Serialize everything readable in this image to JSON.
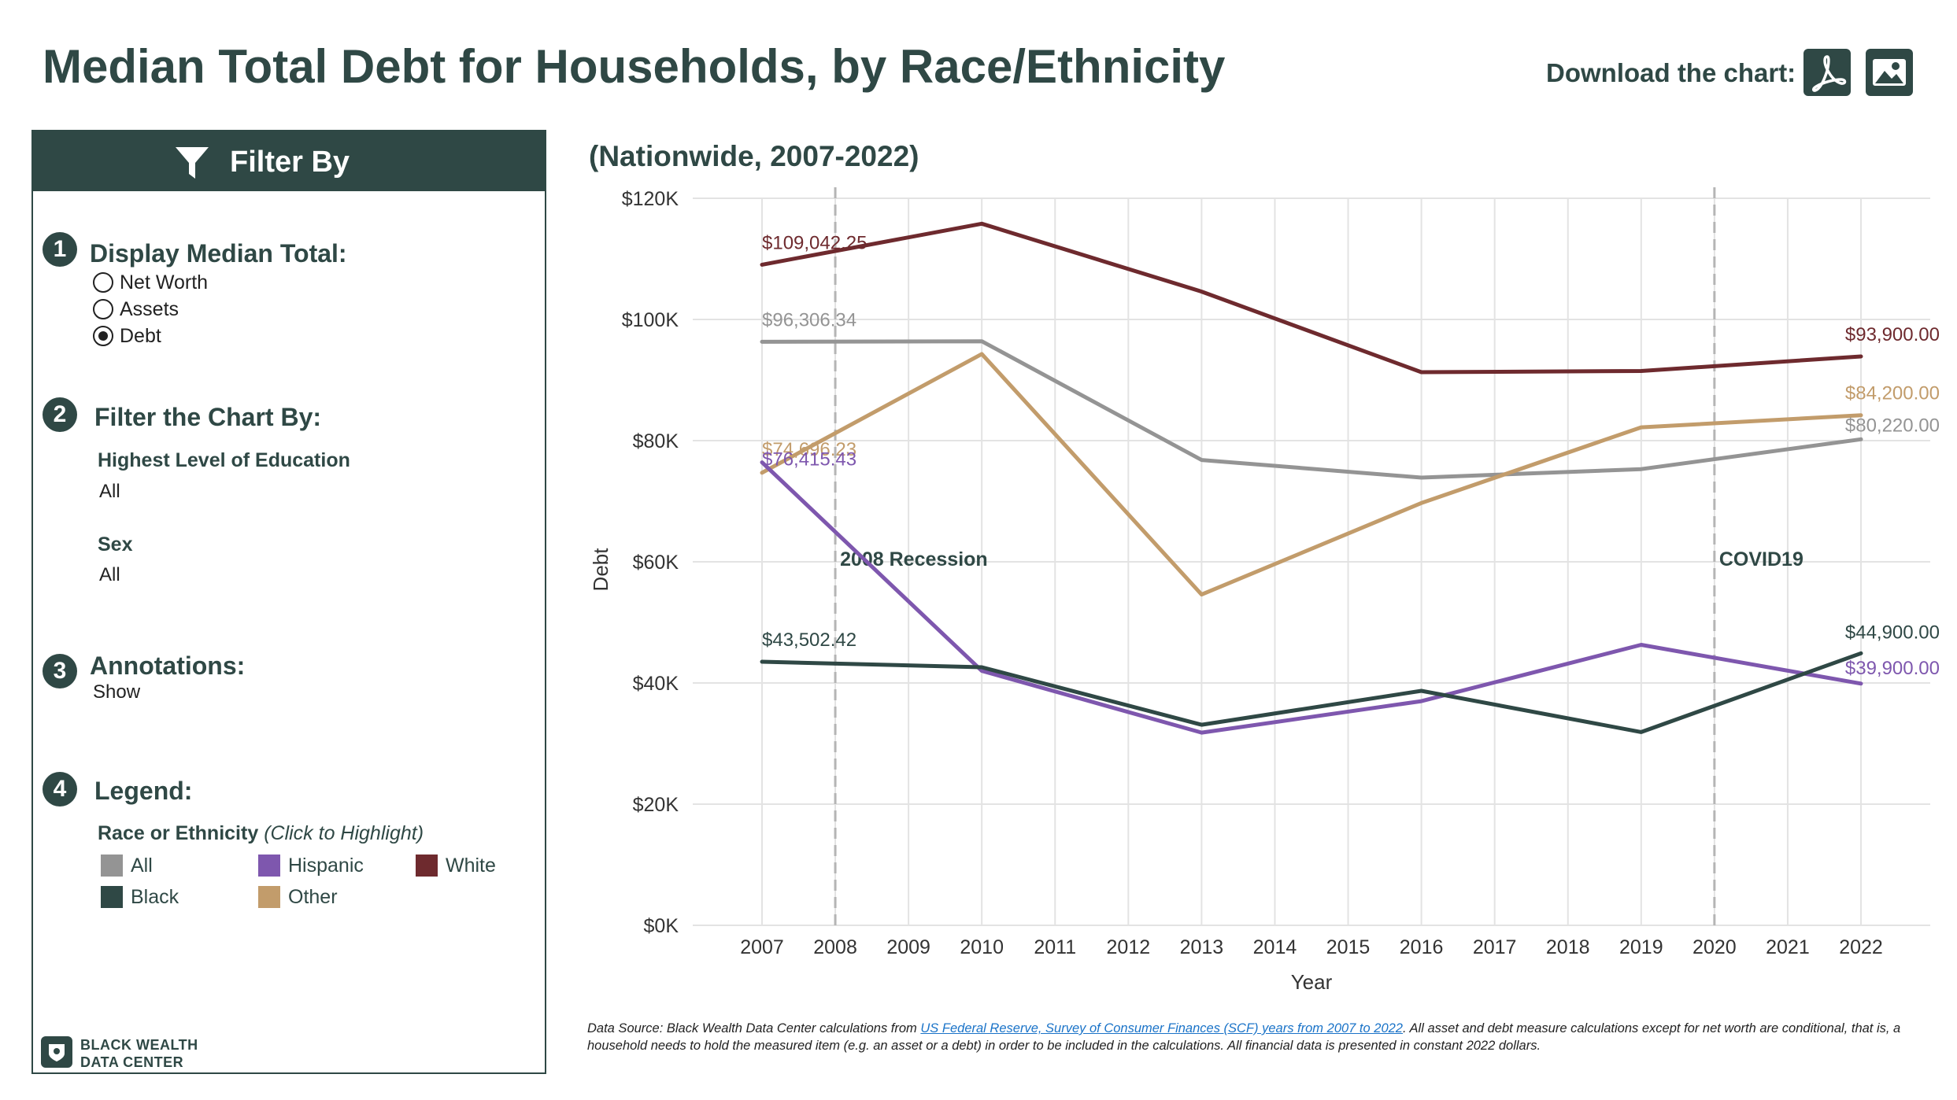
{
  "header": {
    "title": "Median Total Debt for Households, by Race/Ethnicity",
    "download_label": "Download the chart:",
    "download_icons": [
      "pdf-icon",
      "image-icon"
    ]
  },
  "filter_panel": {
    "title": "Filter By",
    "sections": [
      {
        "number": "1",
        "title": "Display Median Total:"
      },
      {
        "number": "2",
        "title": "Filter the Chart By:"
      },
      {
        "number": "3",
        "title": "Annotations:"
      },
      {
        "number": "4",
        "title": "Legend:"
      }
    ],
    "display_options": [
      "Net Worth",
      "Assets",
      "Debt"
    ],
    "display_selected": "Debt",
    "education_label": "Highest Level of Education",
    "education_value": "All",
    "sex_label": "Sex",
    "sex_value": "All",
    "annotations_value": "Show",
    "legend_title": "Race or Ethnicity",
    "legend_hint": "(Click to Highlight)",
    "legend_items": [
      {
        "label": "All",
        "color": "#949494"
      },
      {
        "label": "Hispanic",
        "color": "#7e57ae"
      },
      {
        "label": "White",
        "color": "#6e2a2e"
      },
      {
        "label": "Black",
        "color": "#2f4845"
      },
      {
        "label": "Other",
        "color": "#c29c6b"
      }
    ],
    "brand_lines": [
      "BLACK WEALTH",
      "DATA CENTER"
    ]
  },
  "subtitle": "(Nationwide, 2007-2022)",
  "source": {
    "prefix": "Data Source: Black Wealth Data Center calculations from ",
    "link_text": "US Federal Reserve, Survey of Consumer Finances (SCF) years from 2007 to 2022",
    "suffix": ". All asset and debt measure calculations except for net worth are conditional, that is, a household needs to hold the measured item (e.g. an asset or a debt) in order to be included in the calculations. All financial data is presented in constant 2022 dollars."
  },
  "chart_data": {
    "type": "line",
    "xlabel": "Year",
    "ylabel": "Debt",
    "x_ticks": [
      2007,
      2008,
      2009,
      2010,
      2011,
      2012,
      2013,
      2014,
      2015,
      2016,
      2017,
      2018,
      2019,
      2020,
      2021,
      2022
    ],
    "xlim": [
      2007,
      2022
    ],
    "ylim": [
      0,
      120000
    ],
    "y_ticks": [
      0,
      20000,
      40000,
      60000,
      80000,
      100000,
      120000
    ],
    "y_tick_labels": [
      "$0K",
      "$20K",
      "$40K",
      "$60K",
      "$80K",
      "$100K",
      "$120K"
    ],
    "grid": true,
    "annotations": [
      {
        "x": 2008,
        "label": "2008 Recession"
      },
      {
        "x": 2020,
        "label": "COVID19"
      }
    ],
    "series": [
      {
        "name": "White",
        "color": "#6e2a2e",
        "x": [
          2007,
          2010,
          2013,
          2016,
          2019,
          2022
        ],
        "y": [
          109042.25,
          115800,
          104600,
          91300,
          91500,
          93900
        ],
        "start_label": "$109,042.25",
        "end_label": "$93,900.00"
      },
      {
        "name": "All",
        "color": "#949494",
        "x": [
          2007,
          2010,
          2013,
          2016,
          2019,
          2022
        ],
        "y": [
          96306.34,
          96400,
          76800,
          73900,
          75300,
          80220
        ],
        "start_label": "$96,306.34",
        "end_label": "$80,220.00"
      },
      {
        "name": "Other",
        "color": "#c29c6b",
        "x": [
          2007,
          2010,
          2013,
          2016,
          2019,
          2022
        ],
        "y": [
          74696.23,
          94300,
          54600,
          69700,
          82200,
          84200
        ],
        "start_label": "$74,696.23",
        "end_label": "$84,200.00"
      },
      {
        "name": "Hispanic",
        "color": "#7e57ae",
        "x": [
          2007,
          2010,
          2013,
          2016,
          2019,
          2022
        ],
        "y": [
          76415.43,
          42000,
          31800,
          37000,
          46300,
          39900
        ],
        "start_label": "$76,415.43",
        "end_label": "$39,900.00"
      },
      {
        "name": "Black",
        "color": "#2f4845",
        "x": [
          2007,
          2010,
          2013,
          2016,
          2019,
          2022
        ],
        "y": [
          43502.42,
          42600,
          33100,
          38700,
          31900,
          44900
        ],
        "start_label": "$43,502.42",
        "end_label": "$44,900.00"
      }
    ]
  }
}
